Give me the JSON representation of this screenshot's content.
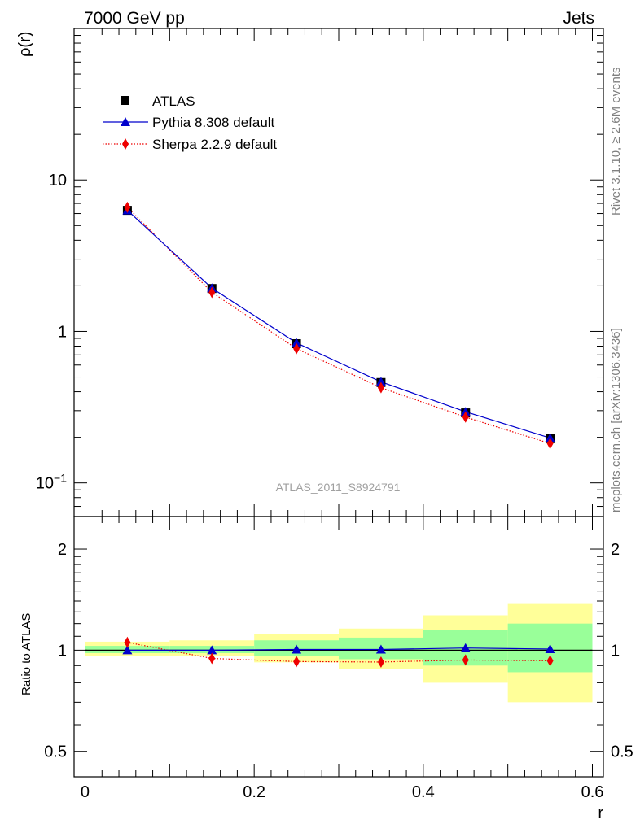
{
  "header": {
    "left": "7000 GeV pp",
    "right": "Jets"
  },
  "side_labels": {
    "rivet": "Rivet 3.1.10, ≥ 2.6M events",
    "mcplots": "mcplots.cern.ch [arXiv:1306.3436]"
  },
  "analysis_id": "ATLAS_2011_S8924791",
  "colors": {
    "data": "#000000",
    "pythia": "#0000cc",
    "sherpa": "#ee0000",
    "band_inner": "#99ff99",
    "band_outer": "#ffff99"
  },
  "chart_data": [
    {
      "type": "line",
      "panel": "main",
      "ylabel": "ρ(r)",
      "yscale": "log",
      "ylim": [
        0.06,
        100
      ],
      "xlim": [
        -0.013,
        0.613
      ],
      "y_tick_labels": [
        {
          "value": 0.1,
          "base": "10",
          "exp": "−1"
        },
        {
          "value": 1,
          "base": "1",
          "exp": ""
        },
        {
          "value": 10,
          "base": "10",
          "exp": ""
        }
      ],
      "legend_position": "top-left",
      "series": [
        {
          "name": "ATLAS",
          "marker": "square",
          "x": [
            0.05,
            0.15,
            0.25,
            0.35,
            0.45,
            0.55
          ],
          "values": [
            6.3,
            1.92,
            0.83,
            0.46,
            0.29,
            0.196
          ]
        },
        {
          "name": "Pythia 8.308 default",
          "marker": "triangle",
          "x": [
            0.05,
            0.15,
            0.25,
            0.35,
            0.45,
            0.55
          ],
          "values": [
            6.3,
            1.93,
            0.84,
            0.465,
            0.295,
            0.198
          ]
        },
        {
          "name": "Sherpa 2.2.9 default",
          "marker": "diamond",
          "x": [
            0.05,
            0.15,
            0.25,
            0.35,
            0.45,
            0.55
          ],
          "values": [
            6.6,
            1.81,
            0.77,
            0.425,
            0.272,
            0.182
          ]
        }
      ]
    },
    {
      "type": "line",
      "panel": "ratio",
      "ylabel": "Ratio to ATLAS",
      "xlabel": "r",
      "yscale": "log",
      "ylim": [
        0.42,
        2.5
      ],
      "xlim": [
        -0.013,
        0.613
      ],
      "y_tick_labels": [
        {
          "value": 0.5,
          "label": "0.5"
        },
        {
          "value": 1,
          "label": "1"
        },
        {
          "value": 2,
          "label": "2"
        }
      ],
      "x_tick_labels": [
        {
          "value": 0,
          "label": "0"
        },
        {
          "value": 0.2,
          "label": "0.2"
        },
        {
          "value": 0.4,
          "label": "0.4"
        },
        {
          "value": 0.6,
          "label": "0.6"
        }
      ],
      "bands": [
        {
          "x0": 0.0,
          "x1": 0.1,
          "inner": [
            0.98,
            1.03
          ],
          "outer": [
            0.96,
            1.06
          ]
        },
        {
          "x0": 0.1,
          "x1": 0.2,
          "inner": [
            0.98,
            1.03
          ],
          "outer": [
            0.96,
            1.07
          ]
        },
        {
          "x0": 0.2,
          "x1": 0.3,
          "inner": [
            0.96,
            1.07
          ],
          "outer": [
            0.92,
            1.12
          ]
        },
        {
          "x0": 0.3,
          "x1": 0.4,
          "inner": [
            0.94,
            1.09
          ],
          "outer": [
            0.88,
            1.16
          ]
        },
        {
          "x0": 0.4,
          "x1": 0.5,
          "inner": [
            0.9,
            1.15
          ],
          "outer": [
            0.8,
            1.27
          ]
        },
        {
          "x0": 0.5,
          "x1": 0.6,
          "inner": [
            0.86,
            1.2
          ],
          "outer": [
            0.7,
            1.38
          ]
        }
      ],
      "series": [
        {
          "name": "Pythia 8.308 default",
          "marker": "triangle",
          "x": [
            0.05,
            0.15,
            0.25,
            0.35,
            0.45,
            0.55
          ],
          "values": [
            1.0,
            1.0,
            1.005,
            1.005,
            1.015,
            1.008
          ]
        },
        {
          "name": "Sherpa 2.2.9 default",
          "marker": "diamond",
          "x": [
            0.05,
            0.15,
            0.25,
            0.35,
            0.45,
            0.55
          ],
          "values": [
            1.055,
            0.945,
            0.925,
            0.922,
            0.935,
            0.93
          ]
        }
      ]
    }
  ]
}
